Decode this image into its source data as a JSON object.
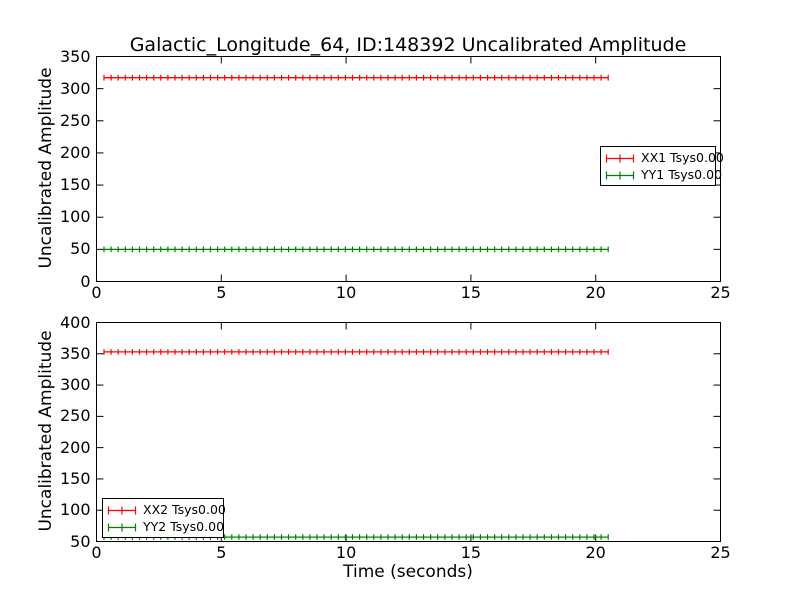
{
  "title": "Galactic_Longitude_64, ID:148392 Uncalibrated Amplitude",
  "xlabel": "Time (seconds)",
  "colors": {
    "background": "#ffffff",
    "axis": "#000000",
    "series_red": "#ff0000",
    "series_green": "#008000"
  },
  "chart_data": [
    {
      "type": "line",
      "subplot": "top",
      "ylabel": "Uncalibrated Amplitude",
      "xlim": [
        0,
        25
      ],
      "ylim": [
        0,
        350
      ],
      "xticks": [
        0,
        5,
        10,
        15,
        20,
        25
      ],
      "yticks": [
        0,
        50,
        100,
        150,
        200,
        250,
        300,
        350
      ],
      "grid": false,
      "legend_position": "center-right",
      "series": [
        {
          "name": "XX1 Tsys0.00",
          "color": "#ff0000",
          "marker": "errorbar-plus",
          "x_start": 0.3,
          "x_end": 20.5,
          "n_points": 72,
          "value": 317,
          "yerr": 7
        },
        {
          "name": "YY1 Tsys0.00",
          "color": "#008000",
          "marker": "errorbar-plus",
          "x_start": 0.3,
          "x_end": 20.5,
          "n_points": 72,
          "value": 50,
          "yerr": 7
        }
      ]
    },
    {
      "type": "line",
      "subplot": "bottom",
      "ylabel": "Uncalibrated Amplitude",
      "xlim": [
        0,
        25
      ],
      "ylim": [
        50,
        400
      ],
      "xticks": [
        0,
        5,
        10,
        15,
        20,
        25
      ],
      "yticks": [
        50,
        100,
        150,
        200,
        250,
        300,
        350,
        400
      ],
      "grid": false,
      "legend_position": "lower-left",
      "series": [
        {
          "name": "XX2 Tsys0.00",
          "color": "#ff0000",
          "marker": "errorbar-plus",
          "x_start": 0.3,
          "x_end": 20.5,
          "n_points": 72,
          "value": 353,
          "yerr": 7
        },
        {
          "name": "YY2 Tsys0.00",
          "color": "#008000",
          "marker": "errorbar-plus",
          "x_start": 0.3,
          "x_end": 20.5,
          "n_points": 72,
          "value": 57,
          "yerr": 7
        }
      ]
    }
  ]
}
